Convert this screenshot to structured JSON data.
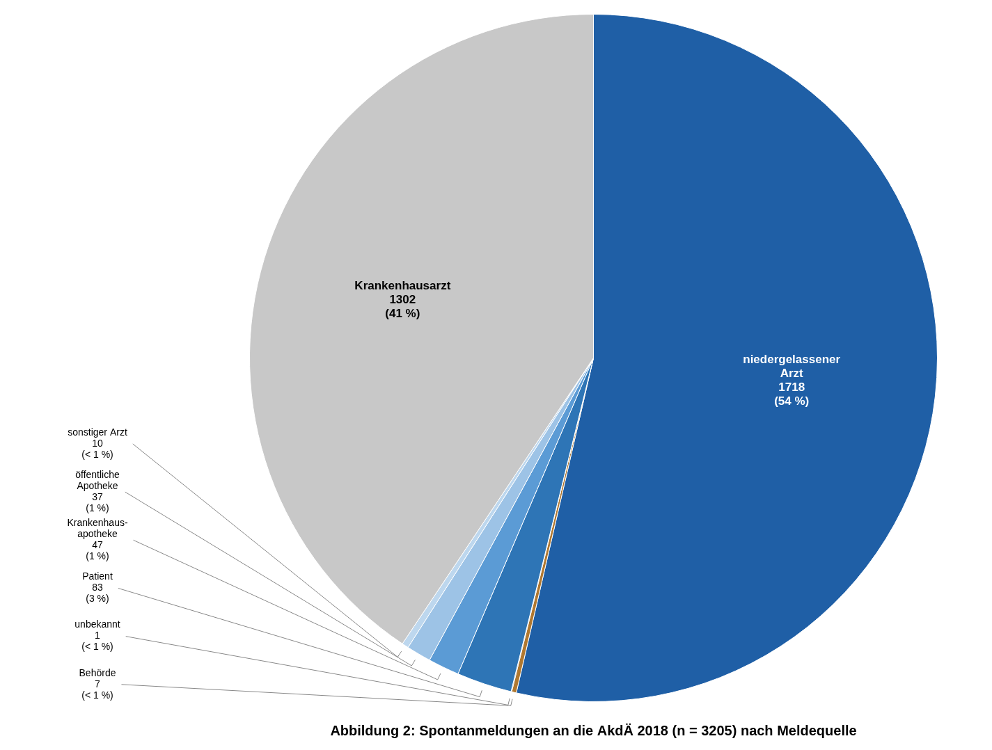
{
  "chart_data": {
    "type": "pie",
    "title": "Abbildung 2: Spontanmeldungen an die AkdÄ 2018 (n = 3205) nach Meldequelle",
    "categories": [
      "niedergelassener\nArzt",
      "Behörde",
      "unbekannt",
      "Patient",
      "Krankenhaus-\napotheke",
      "öffentliche\nApotheke",
      "sonstiger Arzt",
      "Krankenhausarzt"
    ],
    "values": [
      1718,
      7,
      1,
      83,
      47,
      37,
      10,
      1302
    ],
    "value_labels": [
      "1718\n(54 %)",
      "7\n(< 1 %)",
      "1\n(< 1 %)",
      "83\n(3 %)",
      "47\n(1 %)",
      "37\n(1 %)",
      "10\n(< 1 %)",
      "1302\n(41 %)"
    ],
    "colors": [
      "#1f5fa6",
      "#b07830",
      "#1f5fa6",
      "#2e75b6",
      "#5b9bd5",
      "#9dc3e6",
      "#bdd7ee",
      "#c8c8c8"
    ],
    "data_labels": true
  }
}
